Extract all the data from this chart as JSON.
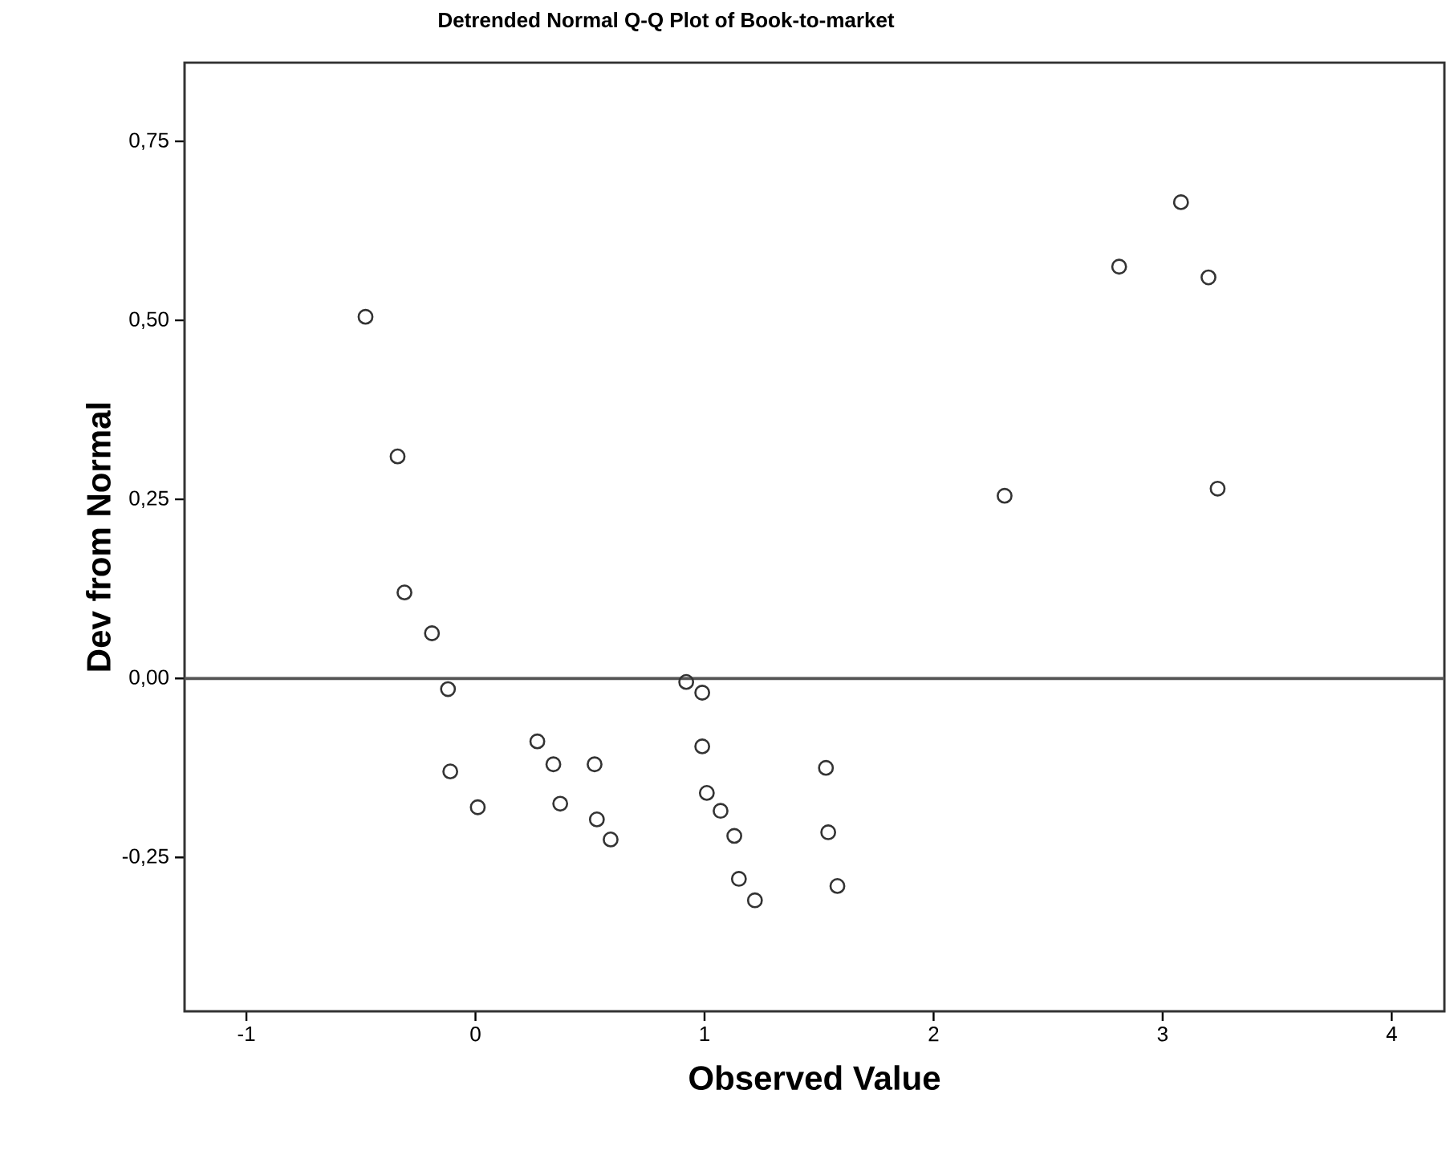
{
  "chart_data": {
    "type": "scatter",
    "title": "Detrended Normal Q-Q Plot of Book-to-market",
    "xlabel": "Observed Value",
    "ylabel": "Dev from Normal",
    "marker": "circle",
    "series": [
      {
        "color": "#333333",
        "x": [
          -0.48,
          -0.34,
          -0.31,
          -0.19,
          -0.12,
          -0.11,
          0.01,
          0.27,
          0.34,
          0.37,
          0.52,
          0.53,
          0.59,
          0.92,
          0.99,
          0.99,
          1.01,
          1.07,
          1.13,
          1.15,
          1.22,
          1.53,
          1.54,
          1.58,
          2.31,
          2.81,
          3.08,
          3.2,
          3.24
        ],
        "values": [
          0.505,
          0.31,
          0.12,
          0.063,
          -0.015,
          -0.13,
          -0.18,
          -0.088,
          -0.12,
          -0.175,
          -0.12,
          -0.197,
          -0.225,
          -0.005,
          -0.02,
          -0.095,
          -0.16,
          -0.185,
          -0.22,
          -0.28,
          -0.31,
          -0.125,
          -0.215,
          -0.29,
          0.255,
          0.575,
          0.665,
          0.56,
          0.265
        ]
      }
    ],
    "xlim": [
      -1.27,
      4.23
    ],
    "ylim": [
      -0.465,
      0.86
    ],
    "xticks": [
      -1,
      0,
      1,
      2,
      3,
      4
    ],
    "yticks": [
      {
        "value": -0.25,
        "label": "-0,25"
      },
      {
        "value": 0,
        "label": "0,00"
      },
      {
        "value": 0.25,
        "label": "0,25"
      },
      {
        "value": 0.5,
        "label": "0,50"
      },
      {
        "value": 0.75,
        "label": "0,75"
      }
    ],
    "ref_lines": [
      {
        "axis": "y",
        "value": 0,
        "color": "#555555"
      }
    ],
    "grid": false
  }
}
